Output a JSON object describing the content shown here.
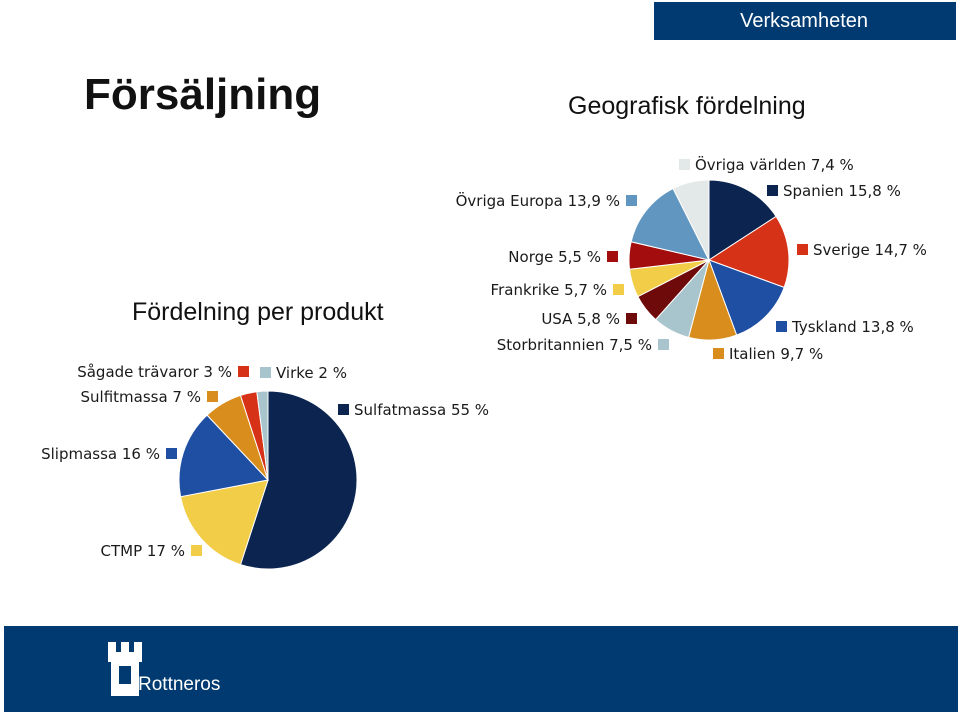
{
  "header": {
    "section_label": "Verksamheten"
  },
  "page_title": "Försäljning",
  "brand": {
    "name": "Rottneros",
    "color": "#003a70"
  },
  "chart_data": [
    {
      "type": "pie",
      "title": "Geografisk fördelning",
      "slices": [
        {
          "label": "Spanien 15,8 %",
          "value": 15.8,
          "color": "#0b2550"
        },
        {
          "label": "Sverige 14,7 %",
          "value": 14.7,
          "color": "#d53218"
        },
        {
          "label": "Tyskland 13,8 %",
          "value": 13.8,
          "color": "#1f4fa2"
        },
        {
          "label": "Italien 9,7 %",
          "value": 9.7,
          "color": "#d98d1c"
        },
        {
          "label": "Storbritannien 7,5 %",
          "value": 7.5,
          "color": "#a8c4cc"
        },
        {
          "label": "USA 5,8 %",
          "value": 5.8,
          "color": "#6e0a0a"
        },
        {
          "label": "Frankrike 5,7 %",
          "value": 5.7,
          "color": "#f2cd48"
        },
        {
          "label": "Norge 5,5 %",
          "value": 5.5,
          "color": "#a30d0d"
        },
        {
          "label": "Övriga Europa 13,9 %",
          "value": 13.9,
          "color": "#6196c0"
        },
        {
          "label": "Övriga världen 7,4 %",
          "value": 7.4,
          "color": "#e3e8e8"
        }
      ]
    },
    {
      "type": "pie",
      "title": "Fördelning per produkt",
      "slices": [
        {
          "label": "Sulfatmassa 55 %",
          "value": 55,
          "color": "#0b2550"
        },
        {
          "label": "CTMP 17 %",
          "value": 17,
          "color": "#f2cd48"
        },
        {
          "label": "Slipmassa 16 %",
          "value": 16,
          "color": "#1f4fa2"
        },
        {
          "label": "Sulfitmassa 7 %",
          "value": 7,
          "color": "#d98d1c"
        },
        {
          "label": "Sågade trävaror 3 %",
          "value": 3,
          "color": "#d53218"
        },
        {
          "label": "Virke 2 %",
          "value": 2,
          "color": "#a8c4cc"
        }
      ]
    }
  ]
}
